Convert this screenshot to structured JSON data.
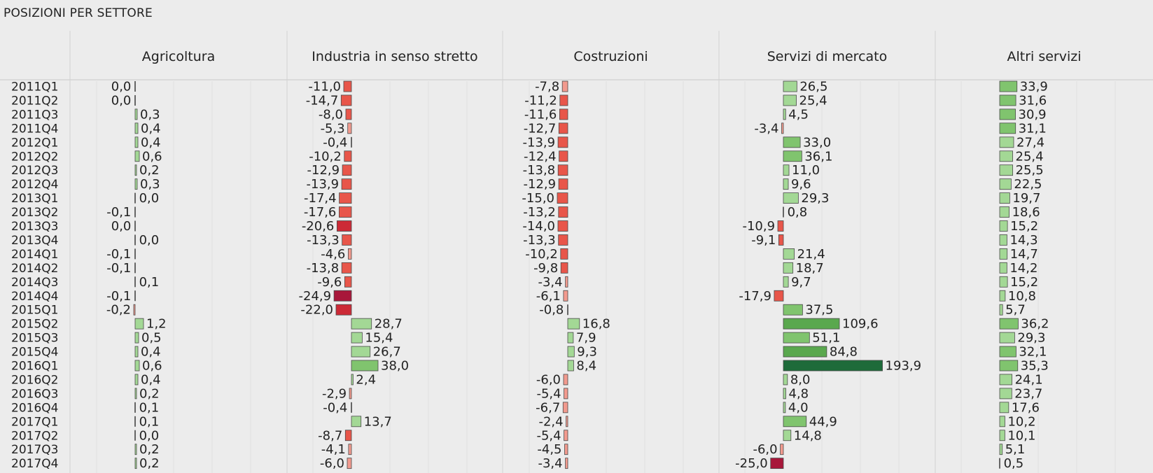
{
  "title": "POSIZIONI PER SETTORE",
  "chart_data": {
    "type": "bar",
    "orientation": "horizontal",
    "title": "POSIZIONI PER SETTORE",
    "categories": [
      "2011Q1",
      "2011Q2",
      "2011Q3",
      "2011Q4",
      "2012Q1",
      "2012Q2",
      "2012Q3",
      "2012Q4",
      "2013Q1",
      "2013Q2",
      "2013Q3",
      "2013Q4",
      "2014Q1",
      "2014Q2",
      "2014Q3",
      "2014Q4",
      "2015Q1",
      "2015Q2",
      "2015Q3",
      "2015Q4",
      "2016Q1",
      "2016Q2",
      "2016Q3",
      "2016Q4",
      "2017Q1",
      "2017Q2",
      "2017Q3",
      "2017Q4"
    ],
    "series": [
      {
        "name": "Agricoltura",
        "values": [
          0.0,
          0.0,
          0.3,
          0.4,
          0.4,
          0.6,
          0.2,
          0.3,
          0.0,
          -0.1,
          0.0,
          0.0,
          -0.1,
          -0.1,
          0.1,
          -0.1,
          -0.2,
          1.2,
          0.5,
          0.4,
          0.6,
          0.4,
          0.2,
          0.1,
          0.1,
          0.0,
          0.2,
          0.2
        ]
      },
      {
        "name": "Industria in senso stretto",
        "values": [
          -11.0,
          -14.7,
          -8.0,
          -5.3,
          -0.4,
          -10.2,
          -12.9,
          -13.9,
          -17.4,
          -17.6,
          -20.6,
          -13.3,
          -4.6,
          -13.8,
          -9.6,
          -24.9,
          -22.0,
          28.7,
          15.4,
          26.7,
          38.0,
          2.4,
          -2.9,
          -0.4,
          13.7,
          -8.7,
          -4.1,
          -6.0
        ]
      },
      {
        "name": "Costruzioni",
        "values": [
          -7.8,
          -11.2,
          -11.6,
          -12.7,
          -13.9,
          -12.4,
          -13.8,
          -12.9,
          -15.0,
          -13.2,
          -14.0,
          -13.3,
          -10.2,
          -9.8,
          -3.4,
          -6.1,
          -0.8,
          16.8,
          7.9,
          9.3,
          8.4,
          -6.0,
          -5.4,
          -6.7,
          -2.4,
          -5.4,
          -4.5,
          -3.4
        ]
      },
      {
        "name": "Servizi di mercato",
        "values": [
          26.5,
          25.4,
          4.5,
          -3.4,
          33.0,
          36.1,
          11.0,
          9.6,
          29.3,
          0.8,
          -10.9,
          -9.1,
          21.4,
          18.7,
          9.7,
          -17.9,
          37.5,
          109.6,
          51.1,
          84.8,
          193.9,
          8.0,
          4.8,
          4.0,
          44.9,
          14.8,
          -6.0,
          -25.0
        ]
      },
      {
        "name": "Altri servizi",
        "values": [
          33.9,
          31.6,
          30.9,
          31.1,
          27.4,
          25.4,
          25.5,
          22.5,
          19.7,
          18.6,
          15.2,
          14.3,
          14.7,
          14.2,
          15.2,
          10.8,
          5.7,
          36.2,
          29.3,
          32.1,
          35.3,
          24.1,
          23.7,
          17.6,
          10.2,
          10.1,
          5.1,
          0.5
        ]
      }
    ],
    "grid": true,
    "colors": {
      "pos_light": "#a3d895",
      "pos_mid": "#80c46e",
      "pos_dark": "#5aa84e",
      "pos_darkest": "#1e6b3a",
      "neg_light": "#f29a8e",
      "neg_mid": "#e8564a",
      "neg_dark": "#cc2a36",
      "neg_darkest": "#a8173a",
      "zero": "#444444"
    }
  }
}
